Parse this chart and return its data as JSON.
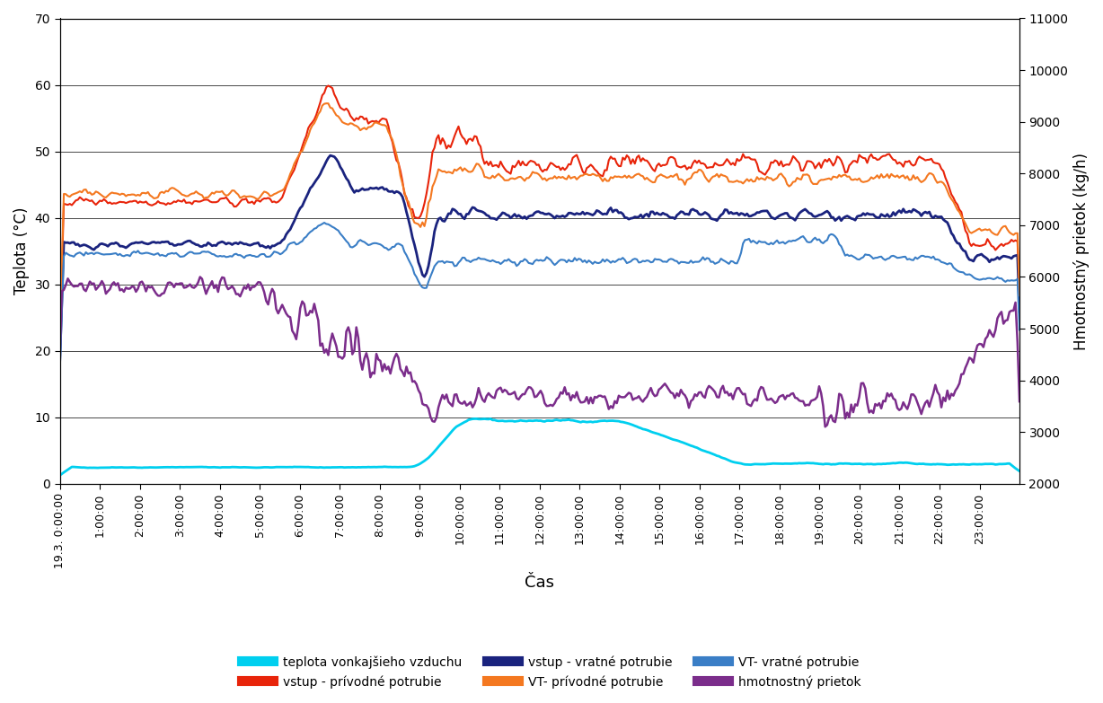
{
  "title": "",
  "xlabel": "Čas",
  "ylabel_left": "Teplota (°C)",
  "ylabel_right": "Hmotnostný prietok (kg/h)",
  "ylim_left": [
    0,
    70
  ],
  "ylim_right": [
    2000,
    11000
  ],
  "yticks_left": [
    0,
    10,
    20,
    30,
    40,
    50,
    60,
    70
  ],
  "yticks_right": [
    2000,
    3000,
    4000,
    5000,
    6000,
    7000,
    8000,
    9000,
    10000,
    11000
  ],
  "x_labels": [
    "19.3. 0:00:00",
    "1:00:00",
    "2:00:00",
    "3:00:00",
    "4:00:00",
    "5:00:00",
    "6:00:00",
    "7:00:00",
    "8:00:00",
    "9:00:00",
    "10:00:00",
    "11:00:00",
    "12:00:00",
    "13:00:00",
    "14:00:00",
    "15:00:00",
    "16:00:00",
    "17:00:00",
    "18:00:00",
    "19:00:00",
    "20:00:00",
    "21:00:00",
    "22:00:00",
    "23:00:00"
  ],
  "x_tick_count": 24,
  "colors": {
    "teplota_vonk": "#00CFEF",
    "vstup_privod": "#E8240A",
    "vstup_vratne": "#1A237E",
    "vt_privod": "#F47820",
    "vt_vratne": "#3A7EC6",
    "hmotnostny": "#7B2D8B"
  },
  "legend": [
    {
      "label": "teplota vonkajšieho vzduchu",
      "color": "#00CFEF"
    },
    {
      "label": "vstup - prívodné potrubie",
      "color": "#E8240A"
    },
    {
      "label": "vstup - vratné potrubie",
      "color": "#1A237E"
    },
    {
      "label": "VT- prívodné potrubie",
      "color": "#F47820"
    },
    {
      "label": "VT- vratné potrubie",
      "color": "#3A7EC6"
    },
    {
      "label": "hmotnostný prietok",
      "color": "#7B2D8B"
    }
  ],
  "background": "#FFFFFF",
  "linewidth": 1.5
}
